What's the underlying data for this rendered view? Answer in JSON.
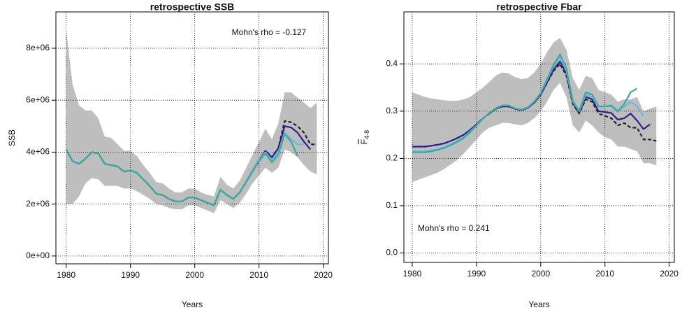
{
  "chart_data": [
    {
      "type": "line",
      "title": "retrospective SSB",
      "xlabel": "Years",
      "ylabel": "SSB",
      "annotation": "Mohn's rho = -0.127",
      "xlim": [
        1978.4,
        2020.8
      ],
      "ylim": [
        -300000,
        9400000
      ],
      "xticks": [
        1980,
        1990,
        2000,
        2010,
        2020
      ],
      "yticks": [
        {
          "value": 0,
          "label": "0e+00"
        },
        {
          "value": 2000000,
          "label": "2e+06"
        },
        {
          "value": 4000000,
          "label": "4e+06"
        },
        {
          "value": 6000000,
          "label": "6e+06"
        },
        {
          "value": 8000000,
          "label": "8e+06"
        }
      ],
      "grid": true,
      "band_color": "#bebebe",
      "x": [
        1980,
        1981,
        1982,
        1983,
        1984,
        1985,
        1986,
        1987,
        1988,
        1989,
        1990,
        1991,
        1992,
        1993,
        1994,
        1995,
        1996,
        1997,
        1998,
        1999,
        2000,
        2001,
        2002,
        2003,
        2004,
        2005,
        2006,
        2007,
        2008,
        2009,
        2010,
        2011,
        2012,
        2013,
        2014,
        2015,
        2016,
        2017,
        2018,
        2019
      ],
      "band_lower": [
        2000000,
        2000000,
        2300000,
        2800000,
        3000000,
        2950000,
        2700000,
        2700000,
        2700000,
        2600000,
        2600000,
        2500000,
        2350000,
        2200000,
        2000000,
        1950000,
        1850000,
        1800000,
        1800000,
        1950000,
        1950000,
        1850000,
        1750000,
        1650000,
        2150000,
        2000000,
        1850000,
        2050000,
        2400000,
        2800000,
        3100000,
        3400000,
        3200000,
        3400000,
        4100000,
        4000000,
        3800000,
        3500000,
        3250000,
        3150000
      ],
      "band_upper": [
        8700000,
        6600000,
        5800000,
        5600000,
        5600000,
        5300000,
        4600000,
        4550000,
        4300000,
        4050000,
        4050000,
        3850000,
        3500000,
        3200000,
        2850000,
        2800000,
        2600000,
        2450000,
        2450000,
        2600000,
        2600000,
        2450000,
        2350000,
        2300000,
        3050000,
        2750000,
        2600000,
        2900000,
        3400000,
        3900000,
        4400000,
        4900000,
        4500000,
        5100000,
        6300000,
        6300000,
        6100000,
        5900000,
        5700000,
        5900000
      ],
      "series": [
        {
          "color": "#222222",
          "dashed": true,
          "values": [
            4100000,
            3650000,
            3550000,
            3750000,
            4000000,
            3950000,
            3550000,
            3500000,
            3450000,
            3250000,
            3300000,
            3200000,
            2950000,
            2700000,
            2400000,
            2350000,
            2200000,
            2100000,
            2100000,
            2250000,
            2250000,
            2150000,
            2050000,
            1950000,
            2550000,
            2350000,
            2200000,
            2450000,
            2850000,
            3300000,
            3700000,
            4050000,
            3800000,
            4150000,
            5200000,
            5150000,
            5000000,
            4750000,
            4300000,
            4300000
          ]
        },
        {
          "color": "#2e1f8f",
          "dashed": false,
          "values": [
            4100000,
            3650000,
            3550000,
            3750000,
            4000000,
            3950000,
            3550000,
            3500000,
            3450000,
            3250000,
            3300000,
            3200000,
            2950000,
            2700000,
            2400000,
            2350000,
            2200000,
            2100000,
            2100000,
            2250000,
            2250000,
            2150000,
            2050000,
            1950000,
            2550000,
            2350000,
            2200000,
            2450000,
            2850000,
            3300000,
            3700000,
            4050000,
            3800000,
            4150000,
            5000000,
            4950000,
            4750000,
            4400000,
            4100000,
            null
          ]
        },
        {
          "color": "#6ab7e0",
          "dashed": false,
          "values": [
            4100000,
            3650000,
            3550000,
            3750000,
            4000000,
            3950000,
            3550000,
            3500000,
            3450000,
            3250000,
            3300000,
            3200000,
            2950000,
            2700000,
            2400000,
            2350000,
            2200000,
            2100000,
            2100000,
            2250000,
            2250000,
            2150000,
            2050000,
            1950000,
            2550000,
            2350000,
            2200000,
            2450000,
            2850000,
            3300000,
            3700000,
            4000000,
            3700000,
            4000000,
            4750000,
            4500000,
            4300000,
            4300000,
            null,
            null
          ]
        },
        {
          "color": "#3aaa9a",
          "dashed": false,
          "values": [
            4100000,
            3650000,
            3550000,
            3750000,
            4000000,
            3950000,
            3550000,
            3500000,
            3450000,
            3250000,
            3300000,
            3200000,
            2950000,
            2700000,
            2400000,
            2350000,
            2200000,
            2100000,
            2100000,
            2250000,
            2250000,
            2150000,
            2050000,
            1950000,
            2550000,
            2350000,
            2200000,
            2450000,
            2850000,
            3250000,
            3650000,
            3950000,
            3600000,
            3900000,
            4700000,
            4400000,
            3850000,
            null,
            null,
            null
          ]
        }
      ]
    },
    {
      "type": "line",
      "title": "retrospective Fbar",
      "xlabel": "Years",
      "ylabel": "F",
      "ylabel_subscript": "4-8",
      "annotation": "Mohn's rho = 0.241",
      "xlim": [
        1978.7,
        2020.8
      ],
      "ylim": [
        -0.02,
        0.51
      ],
      "xticks": [
        1980,
        1990,
        2000,
        2010,
        2020
      ],
      "yticks": [
        {
          "value": 0,
          "label": "0.0"
        },
        0.1,
        0.2,
        0.3,
        0.4
      ],
      "grid": true,
      "band_color": "#bebebe",
      "x": [
        1980,
        1981,
        1982,
        1983,
        1984,
        1985,
        1986,
        1987,
        1988,
        1989,
        1990,
        1991,
        1992,
        1993,
        1994,
        1995,
        1996,
        1997,
        1998,
        1999,
        2000,
        2001,
        2002,
        2003,
        2004,
        2005,
        2006,
        2007,
        2008,
        2009,
        2010,
        2011,
        2012,
        2013,
        2014,
        2015,
        2016,
        2017,
        2018
      ],
      "band_lower": [
        0.15,
        0.155,
        0.16,
        0.165,
        0.17,
        0.178,
        0.187,
        0.197,
        0.21,
        0.225,
        0.24,
        0.255,
        0.265,
        0.27,
        0.275,
        0.275,
        0.272,
        0.27,
        0.275,
        0.285,
        0.3,
        0.32,
        0.345,
        0.36,
        0.33,
        0.27,
        0.255,
        0.28,
        0.27,
        0.255,
        0.245,
        0.24,
        0.225,
        0.225,
        0.22,
        0.215,
        0.19,
        0.19,
        0.185
      ],
      "band_upper": [
        0.34,
        0.335,
        0.33,
        0.327,
        0.325,
        0.323,
        0.322,
        0.322,
        0.325,
        0.33,
        0.34,
        0.35,
        0.362,
        0.375,
        0.382,
        0.38,
        0.372,
        0.368,
        0.37,
        0.382,
        0.4,
        0.425,
        0.445,
        0.455,
        0.43,
        0.37,
        0.345,
        0.375,
        0.37,
        0.345,
        0.34,
        0.335,
        0.32,
        0.325,
        0.325,
        0.33,
        0.3,
        0.305,
        0.31
      ],
      "series": [
        {
          "color": "#222222",
          "dashed": true,
          "values": [
            0.225,
            0.225,
            0.225,
            0.227,
            0.229,
            0.232,
            0.237,
            0.243,
            0.25,
            0.26,
            0.272,
            0.285,
            0.295,
            0.305,
            0.31,
            0.31,
            0.305,
            0.302,
            0.307,
            0.318,
            0.335,
            0.36,
            0.385,
            0.4,
            0.375,
            0.315,
            0.295,
            0.325,
            0.32,
            0.295,
            0.29,
            0.285,
            0.27,
            0.275,
            0.265,
            0.265,
            0.24,
            0.24,
            0.237
          ]
        },
        {
          "color": "#2e1f8f",
          "dashed": false,
          "values": [
            0.225,
            0.225,
            0.225,
            0.227,
            0.229,
            0.232,
            0.237,
            0.243,
            0.25,
            0.26,
            0.272,
            0.285,
            0.295,
            0.305,
            0.31,
            0.31,
            0.305,
            0.302,
            0.307,
            0.318,
            0.335,
            0.362,
            0.388,
            0.405,
            0.38,
            0.317,
            0.297,
            0.33,
            0.325,
            0.3,
            0.298,
            0.296,
            0.282,
            0.285,
            0.295,
            0.28,
            0.262,
            0.272,
            null
          ]
        },
        {
          "color": "#6ab7e0",
          "dashed": false,
          "values": [
            0.215,
            0.215,
            0.215,
            0.217,
            0.22,
            0.224,
            0.23,
            0.237,
            0.245,
            0.257,
            0.27,
            0.285,
            0.296,
            0.306,
            0.312,
            0.312,
            0.306,
            0.303,
            0.308,
            0.32,
            0.338,
            0.366,
            0.395,
            0.413,
            0.385,
            0.32,
            0.3,
            0.335,
            0.33,
            0.31,
            0.31,
            0.31,
            0.298,
            0.31,
            0.32,
            0.31,
            0.29,
            null,
            null
          ]
        },
        {
          "color": "#3aaa9a",
          "dashed": false,
          "values": [
            0.213,
            0.213,
            0.213,
            0.215,
            0.218,
            0.222,
            0.228,
            0.235,
            0.243,
            0.255,
            0.269,
            0.284,
            0.296,
            0.306,
            0.312,
            0.312,
            0.306,
            0.303,
            0.308,
            0.32,
            0.338,
            0.368,
            0.398,
            0.42,
            0.39,
            0.322,
            0.3,
            0.34,
            0.335,
            0.31,
            0.31,
            0.312,
            0.3,
            0.315,
            0.34,
            0.348,
            null,
            null,
            null
          ]
        }
      ]
    }
  ]
}
